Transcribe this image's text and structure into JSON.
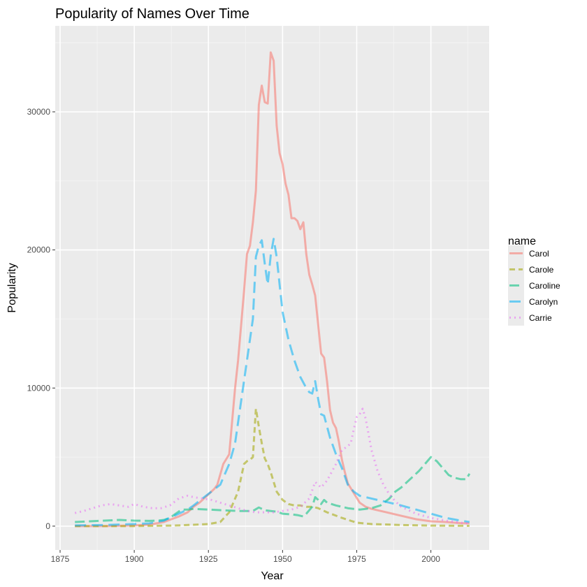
{
  "chart_data": {
    "type": "line",
    "title": "Popularity of Names Over Time",
    "xlabel": "Year",
    "ylabel": "Popularity",
    "xlim": [
      1880,
      2013
    ],
    "ylim": [
      0,
      34500
    ],
    "x_ticks": [
      1875,
      1900,
      1925,
      1950,
      1975,
      2000
    ],
    "y_ticks": [
      0,
      10000,
      20000,
      30000
    ],
    "grid": true,
    "legend": {
      "title": "name",
      "position": "right"
    },
    "series": [
      {
        "name": "Carol",
        "color": "#F8766D",
        "dash": "solid",
        "points": [
          [
            1880,
            0
          ],
          [
            1890,
            0
          ],
          [
            1900,
            50
          ],
          [
            1905,
            100
          ],
          [
            1910,
            300
          ],
          [
            1915,
            700
          ],
          [
            1918,
            1000
          ],
          [
            1920,
            1400
          ],
          [
            1922,
            1700
          ],
          [
            1925,
            2300
          ],
          [
            1927,
            2700
          ],
          [
            1928,
            3000
          ],
          [
            1930,
            4500
          ],
          [
            1932,
            5200
          ],
          [
            1934,
            10000
          ],
          [
            1935,
            12000
          ],
          [
            1937,
            17000
          ],
          [
            1938,
            19700
          ],
          [
            1939,
            20300
          ],
          [
            1940,
            22000
          ],
          [
            1941,
            24300
          ],
          [
            1942,
            30500
          ],
          [
            1943,
            31900
          ],
          [
            1944,
            30700
          ],
          [
            1945,
            30600
          ],
          [
            1946,
            34300
          ],
          [
            1947,
            33700
          ],
          [
            1948,
            29000
          ],
          [
            1949,
            27000
          ],
          [
            1950,
            26200
          ],
          [
            1951,
            24800
          ],
          [
            1952,
            24000
          ],
          [
            1953,
            22300
          ],
          [
            1954,
            22300
          ],
          [
            1955,
            22100
          ],
          [
            1956,
            21500
          ],
          [
            1957,
            22000
          ],
          [
            1958,
            19700
          ],
          [
            1959,
            18200
          ],
          [
            1960,
            17500
          ],
          [
            1961,
            16700
          ],
          [
            1962,
            14600
          ],
          [
            1963,
            12500
          ],
          [
            1964,
            12200
          ],
          [
            1965,
            10500
          ],
          [
            1966,
            8400
          ],
          [
            1967,
            7500
          ],
          [
            1968,
            7100
          ],
          [
            1969,
            6100
          ],
          [
            1970,
            4800
          ],
          [
            1971,
            3900
          ],
          [
            1972,
            3100
          ],
          [
            1974,
            2400
          ],
          [
            1976,
            1700
          ],
          [
            1978,
            1400
          ],
          [
            1980,
            1250
          ],
          [
            1985,
            1000
          ],
          [
            1990,
            750
          ],
          [
            1995,
            500
          ],
          [
            2000,
            350
          ],
          [
            2005,
            300
          ],
          [
            2010,
            220
          ],
          [
            2013,
            200
          ]
        ]
      },
      {
        "name": "Carole",
        "color": "#A3A500",
        "dash": "8,5",
        "points": [
          [
            1880,
            0
          ],
          [
            1900,
            0
          ],
          [
            1915,
            50
          ],
          [
            1925,
            150
          ],
          [
            1929,
            300
          ],
          [
            1932,
            1000
          ],
          [
            1935,
            2500
          ],
          [
            1937,
            4500
          ],
          [
            1938,
            4700
          ],
          [
            1939,
            4800
          ],
          [
            1940,
            5000
          ],
          [
            1941,
            8500
          ],
          [
            1942,
            7200
          ],
          [
            1943,
            6000
          ],
          [
            1944,
            4900
          ],
          [
            1945,
            4500
          ],
          [
            1946,
            3900
          ],
          [
            1948,
            2500
          ],
          [
            1950,
            1900
          ],
          [
            1952,
            1600
          ],
          [
            1954,
            1500
          ],
          [
            1956,
            1500
          ],
          [
            1958,
            1400
          ],
          [
            1960,
            1400
          ],
          [
            1962,
            1300
          ],
          [
            1965,
            1000
          ],
          [
            1970,
            600
          ],
          [
            1975,
            250
          ],
          [
            1980,
            150
          ],
          [
            1990,
            80
          ],
          [
            2000,
            40
          ],
          [
            2013,
            20
          ]
        ]
      },
      {
        "name": "Caroline",
        "color": "#00BF7D",
        "dash": "14,6",
        "points": [
          [
            1880,
            300
          ],
          [
            1885,
            350
          ],
          [
            1890,
            400
          ],
          [
            1895,
            450
          ],
          [
            1900,
            400
          ],
          [
            1905,
            380
          ],
          [
            1908,
            400
          ],
          [
            1910,
            450
          ],
          [
            1912,
            600
          ],
          [
            1914,
            900
          ],
          [
            1916,
            1200
          ],
          [
            1918,
            1200
          ],
          [
            1920,
            1250
          ],
          [
            1925,
            1200
          ],
          [
            1930,
            1150
          ],
          [
            1935,
            1100
          ],
          [
            1940,
            1100
          ],
          [
            1942,
            1350
          ],
          [
            1944,
            1150
          ],
          [
            1946,
            1100
          ],
          [
            1948,
            1050
          ],
          [
            1950,
            900
          ],
          [
            1953,
            850
          ],
          [
            1955,
            800
          ],
          [
            1957,
            700
          ],
          [
            1958,
            900
          ],
          [
            1960,
            1400
          ],
          [
            1961,
            2100
          ],
          [
            1962,
            1900
          ],
          [
            1963,
            1600
          ],
          [
            1964,
            1900
          ],
          [
            1965,
            1700
          ],
          [
            1968,
            1500
          ],
          [
            1970,
            1400
          ],
          [
            1972,
            1300
          ],
          [
            1974,
            1250
          ],
          [
            1976,
            1200
          ],
          [
            1978,
            1250
          ],
          [
            1980,
            1300
          ],
          [
            1983,
            1500
          ],
          [
            1986,
            2000
          ],
          [
            1988,
            2500
          ],
          [
            1990,
            2800
          ],
          [
            1992,
            3200
          ],
          [
            1994,
            3600
          ],
          [
            1996,
            4000
          ],
          [
            1998,
            4500
          ],
          [
            2000,
            5000
          ],
          [
            2002,
            4700
          ],
          [
            2004,
            4200
          ],
          [
            2006,
            3700
          ],
          [
            2008,
            3500
          ],
          [
            2010,
            3400
          ],
          [
            2012,
            3400
          ],
          [
            2013,
            3800
          ]
        ]
      },
      {
        "name": "Carolyn",
        "color": "#00B0F6",
        "dash": "16,8",
        "points": [
          [
            1880,
            50
          ],
          [
            1890,
            80
          ],
          [
            1900,
            150
          ],
          [
            1905,
            200
          ],
          [
            1910,
            400
          ],
          [
            1915,
            900
          ],
          [
            1918,
            1200
          ],
          [
            1920,
            1500
          ],
          [
            1923,
            2000
          ],
          [
            1926,
            2500
          ],
          [
            1929,
            3000
          ],
          [
            1932,
            4500
          ],
          [
            1934,
            6000
          ],
          [
            1936,
            9000
          ],
          [
            1938,
            12000
          ],
          [
            1940,
            15000
          ],
          [
            1941,
            19500
          ],
          [
            1942,
            20300
          ],
          [
            1943,
            20700
          ],
          [
            1944,
            19000
          ],
          [
            1945,
            17500
          ],
          [
            1946,
            19600
          ],
          [
            1947,
            20800
          ],
          [
            1948,
            19500
          ],
          [
            1949,
            17500
          ],
          [
            1950,
            15500
          ],
          [
            1952,
            13500
          ],
          [
            1954,
            12000
          ],
          [
            1956,
            10800
          ],
          [
            1958,
            10000
          ],
          [
            1959,
            9700
          ],
          [
            1960,
            9600
          ],
          [
            1961,
            10500
          ],
          [
            1962,
            9200
          ],
          [
            1963,
            8100
          ],
          [
            1964,
            8000
          ],
          [
            1966,
            6400
          ],
          [
            1968,
            5200
          ],
          [
            1970,
            4200
          ],
          [
            1972,
            3000
          ],
          [
            1974,
            2500
          ],
          [
            1976,
            2200
          ],
          [
            1978,
            2100
          ],
          [
            1980,
            2000
          ],
          [
            1982,
            1900
          ],
          [
            1984,
            1800
          ],
          [
            1986,
            1700
          ],
          [
            1988,
            1600
          ],
          [
            1990,
            1500
          ],
          [
            1995,
            1200
          ],
          [
            2000,
            900
          ],
          [
            2005,
            600
          ],
          [
            2010,
            400
          ],
          [
            2013,
            300
          ]
        ]
      },
      {
        "name": "Carrie",
        "color": "#E76BF3",
        "dash": "2,5",
        "points": [
          [
            1880,
            950
          ],
          [
            1883,
            1100
          ],
          [
            1886,
            1300
          ],
          [
            1889,
            1500
          ],
          [
            1892,
            1600
          ],
          [
            1895,
            1500
          ],
          [
            1898,
            1400
          ],
          [
            1900,
            1600
          ],
          [
            1903,
            1400
          ],
          [
            1906,
            1300
          ],
          [
            1909,
            1300
          ],
          [
            1912,
            1500
          ],
          [
            1915,
            2000
          ],
          [
            1918,
            2200
          ],
          [
            1920,
            2100
          ],
          [
            1923,
            2000
          ],
          [
            1926,
            1900
          ],
          [
            1929,
            1700
          ],
          [
            1932,
            1500
          ],
          [
            1935,
            1300
          ],
          [
            1938,
            1100
          ],
          [
            1941,
            1000
          ],
          [
            1944,
            1000
          ],
          [
            1947,
            1000
          ],
          [
            1950,
            1100
          ],
          [
            1953,
            1200
          ],
          [
            1956,
            1400
          ],
          [
            1959,
            2000
          ],
          [
            1961,
            3200
          ],
          [
            1963,
            2800
          ],
          [
            1965,
            3300
          ],
          [
            1968,
            4500
          ],
          [
            1970,
            5500
          ],
          [
            1972,
            5800
          ],
          [
            1973,
            6000
          ],
          [
            1974,
            7000
          ],
          [
            1975,
            7900
          ],
          [
            1976,
            8100
          ],
          [
            1977,
            8500
          ],
          [
            1978,
            7800
          ],
          [
            1980,
            5500
          ],
          [
            1982,
            4000
          ],
          [
            1984,
            3000
          ],
          [
            1986,
            2300
          ],
          [
            1988,
            1800
          ],
          [
            1990,
            1400
          ],
          [
            1995,
            900
          ],
          [
            2000,
            600
          ],
          [
            2005,
            400
          ],
          [
            2010,
            250
          ],
          [
            2013,
            200
          ]
        ]
      }
    ]
  }
}
